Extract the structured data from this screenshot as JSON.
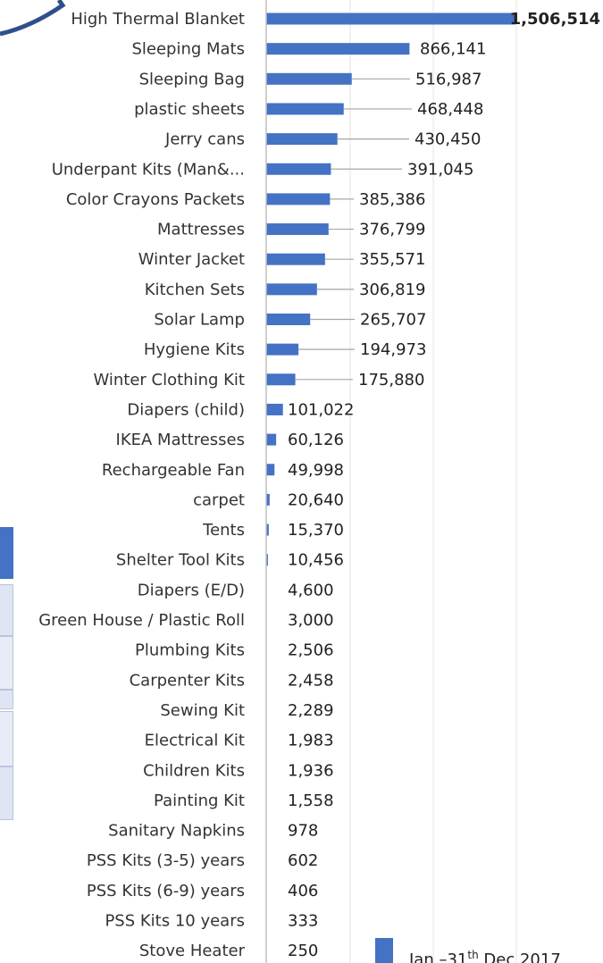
{
  "chart_data": {
    "type": "bar",
    "orientation": "horizontal",
    "title": "",
    "xlabel": "",
    "ylabel": "",
    "xlim": [
      0,
      1506514
    ],
    "grid": "vertical",
    "legend_position": "bottom-right",
    "colors": {
      "bar": "#4472c4",
      "text": "#333333",
      "axis": "#bfbfbf",
      "leader": "#a6a6a6"
    },
    "categories": [
      "High Thermal Blanket",
      "Sleeping Mats",
      "Sleeping Bag",
      "plastic sheets",
      "Jerry cans",
      "Underpant Kits (Man&...",
      "Color Crayons Packets",
      "Mattresses",
      "Winter Jacket",
      "Kitchen Sets",
      "Solar Lamp",
      "Hygiene Kits",
      "Winter Clothing Kit",
      "Diapers (child)",
      "IKEA Mattresses",
      "Rechargeable Fan",
      "carpet",
      "Tents",
      "Shelter Tool Kits",
      "Diapers (E/D)",
      "Green House / Plastic Roll",
      "Plumbing Kits",
      "Carpenter Kits",
      "Sewing Kit",
      "Electrical  Kit",
      "Children Kits",
      "Painting Kit",
      "Sanitary Napkins",
      "PSS Kits (3-5) years",
      "PSS Kits (6-9) years",
      "PSS Kits 10 years",
      "Stove Heater"
    ],
    "series": [
      {
        "name": "Jan –31th  Dec 2017",
        "values": [
          1506514,
          866141,
          516987,
          468448,
          430450,
          391045,
          385386,
          376799,
          355571,
          306819,
          265707,
          194973,
          175880,
          101022,
          60126,
          49998,
          20640,
          15370,
          10456,
          4600,
          3000,
          2506,
          2458,
          2289,
          1983,
          1936,
          1558,
          978,
          602,
          406,
          333,
          250
        ]
      }
    ],
    "value_labels": [
      "1,506,514",
      "866,141",
      "516,987",
      "468,448",
      "430,450",
      "391,045",
      "385,386",
      "376,799",
      "355,571",
      "306,819",
      "265,707",
      "194,973",
      "175,880",
      "101,022",
      "60,126",
      "49,998",
      "20,640",
      "15,370",
      "10,456",
      "4,600",
      "3,000",
      "2,506",
      "2,458",
      "2,289",
      "1,983",
      "1,936",
      "1,558",
      "978",
      "602",
      "406",
      "333",
      "250"
    ]
  },
  "legend": {
    "prefix": "Jan –31",
    "sup": "th",
    "suffix": "  Dec 2017"
  }
}
